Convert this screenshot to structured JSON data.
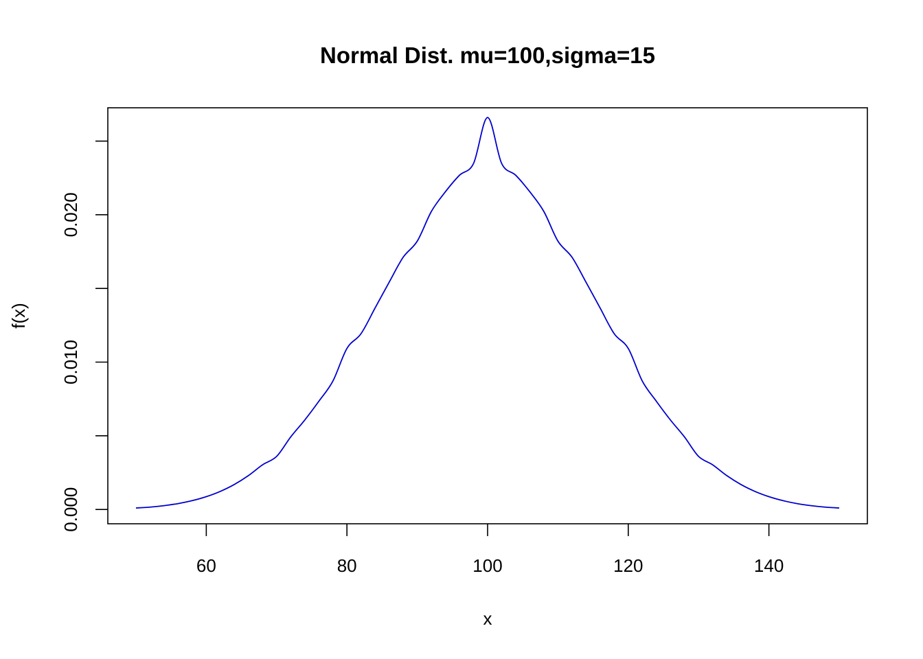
{
  "chart_data": {
    "type": "line",
    "title": "Normal Dist. mu=100,sigma=15",
    "xlabel": "x",
    "ylabel": "f(x)",
    "xlim": [
      46,
      154
    ],
    "ylim": [
      -0.00097,
      0.02726
    ],
    "x_ticks": [
      60,
      80,
      100,
      120,
      140
    ],
    "x_tick_labels": [
      "60",
      "80",
      "100",
      "120",
      "140"
    ],
    "y_ticks": [
      0.0,
      0.005,
      0.01,
      0.015,
      0.02,
      0.025
    ],
    "y_tick_labels": [
      "0.000",
      "",
      "0.010",
      "",
      "0.020",
      ""
    ],
    "grid": false,
    "series": [
      {
        "line_color": "#0000CD",
        "x": [
          50,
          52,
          54,
          56,
          58,
          60,
          62,
          64,
          66,
          68,
          70,
          72,
          74,
          76,
          78,
          80,
          82,
          84,
          86,
          88,
          90,
          92,
          94,
          96,
          98,
          100,
          102,
          104,
          106,
          108,
          110,
          112,
          114,
          116,
          118,
          120,
          122,
          124,
          126,
          128,
          130,
          132,
          134,
          136,
          138,
          140,
          142,
          144,
          146,
          148,
          150
        ],
        "y": [
          0.0001,
          0.00016,
          0.00026,
          0.0004,
          0.0006,
          0.00087,
          0.00123,
          0.0017,
          0.0023,
          0.00303,
          0.0036,
          0.00492,
          0.00607,
          0.00734,
          0.00871,
          0.01093,
          0.01193,
          0.01367,
          0.01542,
          0.01712,
          0.01821,
          0.02022,
          0.02156,
          0.02268,
          0.02348,
          0.0266,
          0.02348,
          0.02268,
          0.02156,
          0.02022,
          0.01821,
          0.01712,
          0.01542,
          0.01367,
          0.01193,
          0.01093,
          0.00871,
          0.00734,
          0.00607,
          0.00492,
          0.0036,
          0.00303,
          0.0023,
          0.0017,
          0.00123,
          0.00087,
          0.0006,
          0.0004,
          0.00026,
          0.00016,
          0.0001
        ]
      }
    ]
  }
}
